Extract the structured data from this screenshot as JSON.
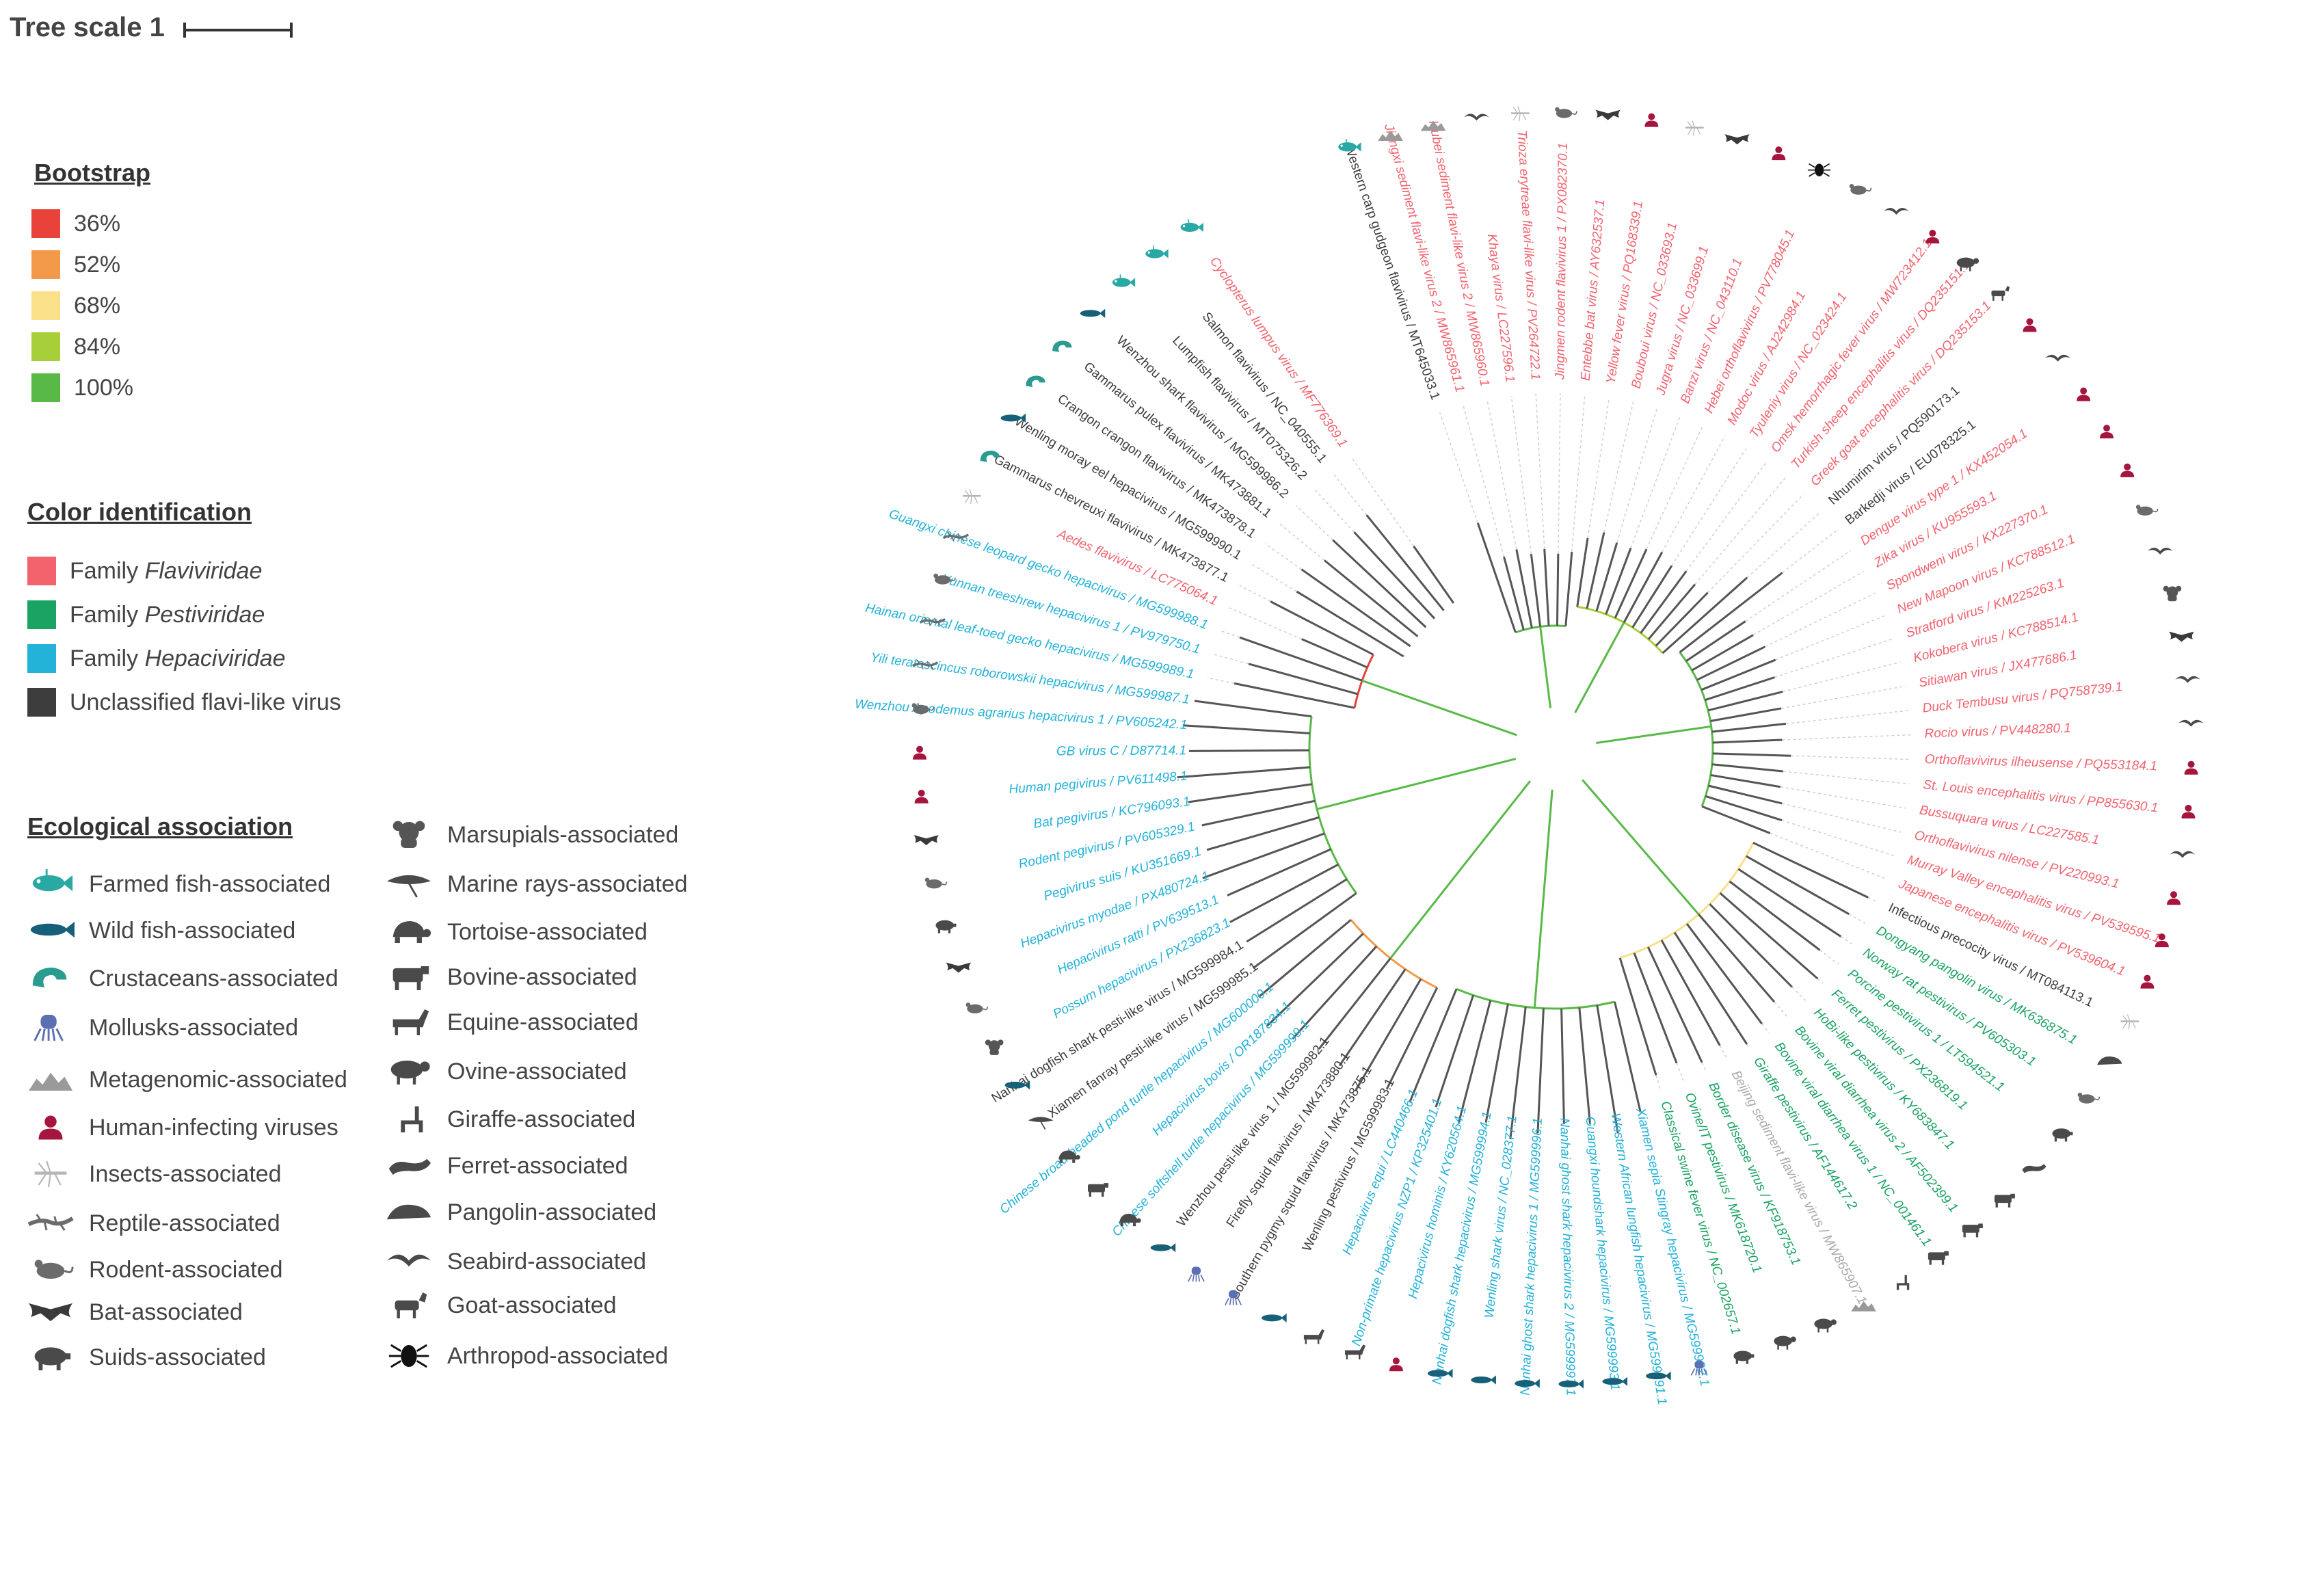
{
  "tree_scale": {
    "label": "Tree scale 1"
  },
  "bootstrap": {
    "title": "Bootstrap",
    "items": [
      {
        "label": "36%",
        "color": "#e8423a"
      },
      {
        "label": "52%",
        "color": "#f29a4a"
      },
      {
        "label": "68%",
        "color": "#fbe08a"
      },
      {
        "label": "84%",
        "color": "#a7cf3a"
      },
      {
        "label": "100%",
        "color": "#58b947"
      }
    ]
  },
  "color_identification": {
    "title": "Color identification",
    "items": [
      {
        "prefix": "Family ",
        "name": "Flaviviridae",
        "color": "#f2636e"
      },
      {
        "prefix": "Family ",
        "name": "Pestiviridae",
        "color": "#1aa362"
      },
      {
        "prefix": "Family ",
        "name": "Hepaciviridae",
        "color": "#23b2d8"
      },
      {
        "prefix": "",
        "name": "Unclassified flavi-like virus",
        "color": "#3d3d3d"
      }
    ]
  },
  "ecological_association": {
    "title": "Ecological association",
    "left": [
      {
        "label": "Farmed fish-associated",
        "icon": "farmed-fish-icon",
        "color": "#2aa9a4"
      },
      {
        "label": "Wild fish-associated",
        "icon": "wild-fish-icon",
        "color": "#17607a"
      },
      {
        "label": "Crustaceans-associated",
        "icon": "crustacean-icon",
        "color": "#2a9b8f"
      },
      {
        "label": "Mollusks-associated",
        "icon": "mollusk-icon",
        "color": "#5b6fb3"
      },
      {
        "label": "Metagenomic-associated",
        "icon": "metagenomic-icon",
        "color": "#9a9a9a"
      },
      {
        "label": "Human-infecting viruses",
        "icon": "human-icon",
        "color": "#a5153d"
      },
      {
        "label": "Insects-associated",
        "icon": "insect-icon",
        "color": "#b5b5b5"
      },
      {
        "label": "Reptile-associated",
        "icon": "reptile-icon",
        "color": "#6b6b6b"
      },
      {
        "label": "Rodent-associated",
        "icon": "rodent-icon",
        "color": "#6b6b6b"
      },
      {
        "label": "Bat-associated",
        "icon": "bat-icon",
        "color": "#3a3a3a"
      },
      {
        "label": "Suids-associated",
        "icon": "suid-icon",
        "color": "#4a4a4a"
      }
    ],
    "right": [
      {
        "label": "Marsupials-associated",
        "icon": "marsupial-icon",
        "color": "#555555"
      },
      {
        "label": "Marine rays-associated",
        "icon": "ray-icon",
        "color": "#4a4a4a"
      },
      {
        "label": "Tortoise-associated",
        "icon": "tortoise-icon",
        "color": "#4a4a4a"
      },
      {
        "label": "Bovine-associated",
        "icon": "bovine-icon",
        "color": "#4a4a4a"
      },
      {
        "label": "Equine-associated",
        "icon": "equine-icon",
        "color": "#4a4a4a"
      },
      {
        "label": "Ovine-associated",
        "icon": "ovine-icon",
        "color": "#4a4a4a"
      },
      {
        "label": "Giraffe-associated",
        "icon": "giraffe-icon",
        "color": "#4a4a4a"
      },
      {
        "label": "Ferret-associated",
        "icon": "ferret-icon",
        "color": "#4a4a4a"
      },
      {
        "label": "Pangolin-associated",
        "icon": "pangolin-icon",
        "color": "#4a4a4a"
      },
      {
        "label": "Seabird-associated",
        "icon": "seabird-icon",
        "color": "#4a4a4a"
      },
      {
        "label": "Goat-associated",
        "icon": "goat-icon",
        "color": "#4a4a4a"
      },
      {
        "label": "Arthropod-associated",
        "icon": "arthropod-icon",
        "color": "#111111"
      }
    ]
  },
  "tree": {
    "leaves": [
      {
        "label": "Western carp gudgeon flavivirus / MT645033.1",
        "family": "unclassified",
        "host": "farmed-fish-icon"
      },
      {
        "label": "Jiangxi sediment flavi-like virus 2 / MW865961.1",
        "family": "flaviviridae",
        "host": "metagenomic-icon"
      },
      {
        "label": "Hubei sediment flavi-like virus 2 / MW865960.1",
        "family": "flaviviridae",
        "host": "metagenomic-icon"
      },
      {
        "label": "Khaya virus / LC227596.1",
        "family": "flaviviridae",
        "host": "seabird-icon"
      },
      {
        "label": "Trioza erytreae flavi-like virus / PV264722.1",
        "family": "flaviviridae",
        "host": "insect-icon"
      },
      {
        "label": "Jingmen rodent flavivirus 1 / PX082370.1",
        "family": "flaviviridae",
        "host": "rodent-icon"
      },
      {
        "label": "Entebbe bat virus / AY632537.1",
        "family": "flaviviridae",
        "host": "bat-icon"
      },
      {
        "label": "Yellow fever virus / PQ168339.1",
        "family": "flaviviridae",
        "host": "human-icon"
      },
      {
        "label": "Bouboui virus / NC_033693.1",
        "family": "flaviviridae",
        "host": "insect-icon"
      },
      {
        "label": "Jugra virus / NC_033699.1",
        "family": "flaviviridae",
        "host": "bat-icon"
      },
      {
        "label": "Banzi virus / NC_043110.1",
        "family": "flaviviridae",
        "host": "human-icon"
      },
      {
        "label": "Hebei orthoflavivirus / PV778045.1",
        "family": "flaviviridae",
        "host": "arthropod-icon"
      },
      {
        "label": "Modoc virus / AJ242984.1",
        "family": "flaviviridae",
        "host": "rodent-icon"
      },
      {
        "label": "Tyuleniy virus / NC_023424.1",
        "family": "flaviviridae",
        "host": "seabird-icon"
      },
      {
        "label": "Omsk hemorrhagic fever virus / MW723412.1",
        "family": "flaviviridae",
        "host": "human-icon"
      },
      {
        "label": "Turkish sheep encephalitis virus / DQ235151.1",
        "family": "flaviviridae",
        "host": "ovine-icon"
      },
      {
        "label": "Greek goat encephalitis virus / DQ235153.1",
        "family": "flaviviridae",
        "host": "goat-icon"
      },
      {
        "label": "Nhumirim virus / PQ590173.1",
        "family": "unclassified",
        "host": "human-icon"
      },
      {
        "label": "Barkedji virus / EU078325.1",
        "family": "unclassified",
        "host": "seabird-icon"
      },
      {
        "label": "Dengue virus type 1 / KX452054.1",
        "family": "flaviviridae",
        "host": "human-icon"
      },
      {
        "label": "Zika virus / KU955593.1",
        "family": "flaviviridae",
        "host": "human-icon"
      },
      {
        "label": "Spondweni virus / KX227370.1",
        "family": "flaviviridae",
        "host": "human-icon"
      },
      {
        "label": "New Mapoon virus / KC788512.1",
        "family": "flaviviridae",
        "host": "rodent-icon"
      },
      {
        "label": "Stratford virus / KM225263.1",
        "family": "flaviviridae",
        "host": "seabird-icon"
      },
      {
        "label": "Kokobera virus / KC788514.1",
        "family": "flaviviridae",
        "host": "marsupial-icon"
      },
      {
        "label": "Sitiawan virus / JX477686.1",
        "family": "flaviviridae",
        "host": "bat-icon"
      },
      {
        "label": "Duck Tembusu virus / PQ758739.1",
        "family": "flaviviridae",
        "host": "seabird-icon"
      },
      {
        "label": "Rocio virus / PV448280.1",
        "family": "flaviviridae",
        "host": "seabird-icon"
      },
      {
        "label": "Orthoflavivirus ilheusense / PQ553184.1",
        "family": "flaviviridae",
        "host": "human-icon"
      },
      {
        "label": "St. Louis encephalitis virus / PP855630.1",
        "family": "flaviviridae",
        "host": "human-icon"
      },
      {
        "label": "Bussuquara virus / LC227585.1",
        "family": "flaviviridae",
        "host": "seabird-icon"
      },
      {
        "label": "Orthoflavivirus nilense / PV220993.1",
        "family": "flaviviridae",
        "host": "human-icon"
      },
      {
        "label": "Murray Valley encephalitis virus / PV539595.1",
        "family": "flaviviridae",
        "host": "human-icon"
      },
      {
        "label": "Japanese encephalitis virus / PV539604.1",
        "family": "flaviviridae",
        "host": "human-icon"
      },
      {
        "label": "Infectious precocity virus / MT084113.1",
        "family": "unclassified",
        "host": "insect-icon"
      },
      {
        "label": "Dongyang pangolin virus / MK636875.1",
        "family": "pestiviridae",
        "host": "pangolin-icon"
      },
      {
        "label": "Norway rat pestivirus / PV605303.1",
        "family": "pestiviridae",
        "host": "rodent-icon"
      },
      {
        "label": "Porcine pestivirus 1 / LT594521.1",
        "family": "pestiviridae",
        "host": "suid-icon"
      },
      {
        "label": "Ferret pestivirus / PX236819.1",
        "family": "pestiviridae",
        "host": "ferret-icon"
      },
      {
        "label": "HoBi-like pestivirus / KY683847.1",
        "family": "pestiviridae",
        "host": "bovine-icon"
      },
      {
        "label": "Bovine viral diarrhea virus 2 / AF502399.1",
        "family": "pestiviridae",
        "host": "bovine-icon"
      },
      {
        "label": "Bovine viral diarrhea virus 1 / NC_001461.1",
        "family": "pestiviridae",
        "host": "bovine-icon"
      },
      {
        "label": "Giraffe pestivirus / AF144617.2",
        "family": "pestiviridae",
        "host": "giraffe-icon"
      },
      {
        "label": "Beijing sediment flavi-like virus / MW865907.1",
        "family": "metagenomic",
        "host": "metagenomic-icon"
      },
      {
        "label": "Border disease virus / KF918753.1",
        "family": "pestiviridae",
        "host": "ovine-icon"
      },
      {
        "label": "Ovine/IT pestivirus / MK618720.1",
        "family": "pestiviridae",
        "host": "ovine-icon"
      },
      {
        "label": "Classical swine fever virus / NC_002657.1",
        "family": "pestiviridae",
        "host": "suid-icon"
      },
      {
        "label": "Xiamen sepia Stingray hepacivirus / MG599992.1",
        "family": "hepaciviridae",
        "host": "mollusk-icon"
      },
      {
        "label": "Western African lungfish hepacivirus / MG599991.1",
        "family": "hepaciviridae",
        "host": "wild-fish-icon"
      },
      {
        "label": "Guangxi houndshark hepacivirus / MG599993.1",
        "family": "hepaciviridae",
        "host": "wild-fish-icon"
      },
      {
        "label": "Nanhai ghost shark hepacivirus 2 / MG599997.1",
        "family": "hepaciviridae",
        "host": "wild-fish-icon"
      },
      {
        "label": "Nanhai ghost shark hepacivirus 1 / MG599996.1",
        "family": "hepaciviridae",
        "host": "wild-fish-icon"
      },
      {
        "label": "Wenling shark virus / NC_028377.1",
        "family": "hepaciviridae",
        "host": "wild-fish-icon"
      },
      {
        "label": "Nanhai dogfish shark hepacivirus / MG599994.1",
        "family": "hepaciviridae",
        "host": "wild-fish-icon"
      },
      {
        "label": "Hepacivirus hominis / KY620564.1",
        "family": "hepaciviridae",
        "host": "human-icon"
      },
      {
        "label": "Non-primate hepacivirus NZP1 / KP325401.1",
        "family": "hepaciviridae",
        "host": "equine-icon"
      },
      {
        "label": "Hepacivirus equi / LC440466.1",
        "family": "hepaciviridae",
        "host": "equine-icon"
      },
      {
        "label": "Wenling pestivirus / MG599983.1",
        "family": "unclassified",
        "host": "wild-fish-icon"
      },
      {
        "label": "Southern pygmy squid flavivirus / MK473875.1",
        "family": "unclassified",
        "host": "mollusk-icon"
      },
      {
        "label": "Firefly squid flavivirus / MK473880.1",
        "family": "unclassified",
        "host": "mollusk-icon"
      },
      {
        "label": "Wenzhou pesti-like virus 1 / MG599982.1",
        "family": "unclassified",
        "host": "wild-fish-icon"
      },
      {
        "label": "Chinese softshell turtle hepacivirus / MG599999.1",
        "family": "hepaciviridae",
        "host": "tortoise-icon"
      },
      {
        "label": "Hepacivirus bovis / OR187834.1",
        "family": "hepaciviridae",
        "host": "bovine-icon"
      },
      {
        "label": "Chinese broad-headed pond turtle hepacivirus / MG600000.1",
        "family": "hepaciviridae",
        "host": "tortoise-icon"
      },
      {
        "label": "Xiamen fanray pesti-like virus / MG599985.1",
        "family": "unclassified",
        "host": "ray-icon"
      },
      {
        "label": "Nanhai dogfish shark pesti-like virus / MG599984.1",
        "family": "unclassified",
        "host": "wild-fish-icon"
      },
      {
        "label": "Possum hepacivirus / PX236823.1",
        "family": "hepaciviridae",
        "host": "marsupial-icon"
      },
      {
        "label": "Hepacivirus ratti / PV639513.1",
        "family": "hepaciviridae",
        "host": "rodent-icon"
      },
      {
        "label": "Hepacivirus myodae / PX480724.1",
        "family": "hepaciviridae",
        "host": "bat-icon"
      },
      {
        "label": "Pegivirus suis / KU351669.1",
        "family": "hepaciviridae",
        "host": "suid-icon"
      },
      {
        "label": "Rodent pegivirus / PV605329.1",
        "family": "hepaciviridae",
        "host": "rodent-icon"
      },
      {
        "label": "Bat pegivirus / KC796093.1",
        "family": "hepaciviridae",
        "host": "bat-icon"
      },
      {
        "label": "Human pegivirus / PV611498.1",
        "family": "hepaciviridae",
        "host": "human-icon"
      },
      {
        "label": "GB virus C / D87714.1",
        "family": "hepaciviridae",
        "host": "human-icon"
      },
      {
        "label": "Wenzhou Apodemus agrarius hepacivirus 1 / PV605242.1",
        "family": "hepaciviridae",
        "host": "rodent-icon"
      },
      {
        "label": "Yili teratoscincus roborowskii hepacivirus / MG599987.1",
        "family": "hepaciviridae",
        "host": "reptile-icon"
      },
      {
        "label": "Hainan oriental leaf-toed gecko hepacivirus / MG599989.1",
        "family": "hepaciviridae",
        "host": "reptile-icon"
      },
      {
        "label": "Yunnan treeshrew hepacivirus 1 / PV979750.1",
        "family": "hepaciviridae",
        "host": "rodent-icon"
      },
      {
        "label": "Guangxi chinese leopard gecko hepacivirus / MG599988.1",
        "family": "hepaciviridae",
        "host": "reptile-icon"
      },
      {
        "label": "Aedes flavivirus / LC775064.1",
        "family": "flaviviridae",
        "host": "insect-icon"
      },
      {
        "label": "Gammarus chevreuxi flavivirus / MK473877.1",
        "family": "unclassified",
        "host": "crustacean-icon"
      },
      {
        "label": "Wenling moray eel hepacivirus / MG599990.1",
        "family": "unclassified",
        "host": "wild-fish-icon"
      },
      {
        "label": "Crangon crangon flavivirus / MK473878.1",
        "family": "unclassified",
        "host": "crustacean-icon"
      },
      {
        "label": "Gammarus pulex flavivirus / MK473881.1",
        "family": "unclassified",
        "host": "crustacean-icon"
      },
      {
        "label": "Wenzhou shark flavivirus / MG599986.2",
        "family": "unclassified",
        "host": "wild-fish-icon"
      },
      {
        "label": "Lumpfish flavivirus / MT075326.2",
        "family": "unclassified",
        "host": "farmed-fish-icon"
      },
      {
        "label": "Salmon flavivirus / NC_040555.1",
        "family": "unclassified",
        "host": "farmed-fish-icon"
      },
      {
        "label": "Cyclopterus lumpus virus / MF776369.1",
        "family": "flaviviridae",
        "host": "farmed-fish-icon"
      }
    ]
  }
}
